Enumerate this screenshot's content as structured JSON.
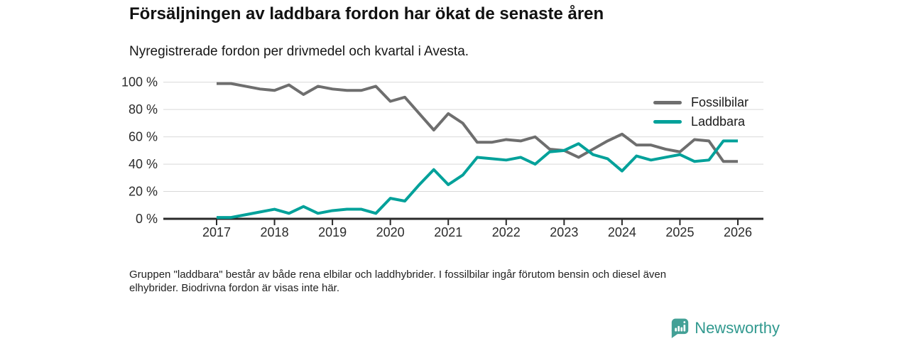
{
  "title": "Försäljningen av laddbara fordon har ökat de senaste åren",
  "subtitle": "Nyregistrerade fordon per drivmedel och kvartal i Avesta.",
  "footnote": {
    "line1": "Gruppen \"laddbara\" består av både rena elbilar och laddhybrider. I fossilbilar ingår förutom bensin och diesel även",
    "line2": "elhybrider. Biodrivna fordon är visas inte här."
  },
  "brand": {
    "name": "Newsworthy",
    "text_color": "#31998f",
    "mark_color": "#43a096"
  },
  "chart_data": {
    "type": "line",
    "title": "Försäljningen av laddbara fordon har ökat de senaste åren",
    "subtitle": "Nyregistrerade fordon per drivmedel och kvartal i Avesta.",
    "x_unit": "quarter",
    "x_start": "2017 Q1",
    "x_end": "2026 Q1",
    "points_per_year": 4,
    "x_tick_labels": [
      "2017",
      "2018",
      "2019",
      "2020",
      "2021",
      "2022",
      "2023",
      "2024",
      "2025",
      "2026"
    ],
    "y_ticks": [
      {
        "label": "100 %",
        "value": 100
      },
      {
        "label": "80 %",
        "value": 80
      },
      {
        "label": "60 %",
        "value": 60
      },
      {
        "label": "40 %",
        "value": 40
      },
      {
        "label": "20 %",
        "value": 20
      },
      {
        "label": "0 %",
        "value": 0
      }
    ],
    "ylim": [
      0,
      100
    ],
    "grid": true,
    "legend_position": "top-right",
    "grid_color": "#d9d9d9",
    "axis_color": "#2a2a2a",
    "tick_text_color": "#2b2b2b",
    "series": [
      {
        "name": "Fossilbilar",
        "color": "#6e6e6e",
        "values": [
          99,
          99,
          97,
          95,
          94,
          98,
          91,
          97,
          95,
          94,
          94,
          97,
          86,
          89,
          77,
          65,
          77,
          70,
          56,
          56,
          58,
          57,
          60,
          51,
          50,
          45,
          51,
          57,
          62,
          54,
          54,
          51,
          49,
          58,
          57,
          42,
          42
        ]
      },
      {
        "name": "Laddbara",
        "color": "#00a19a",
        "values": [
          1,
          1,
          3,
          5,
          7,
          4,
          9,
          4,
          6,
          7,
          7,
          4,
          15,
          13,
          25,
          36,
          25,
          32,
          45,
          44,
          43,
          45,
          40,
          49,
          50,
          55,
          47,
          44,
          35,
          46,
          43,
          45,
          47,
          42,
          43,
          57,
          57
        ]
      }
    ]
  }
}
